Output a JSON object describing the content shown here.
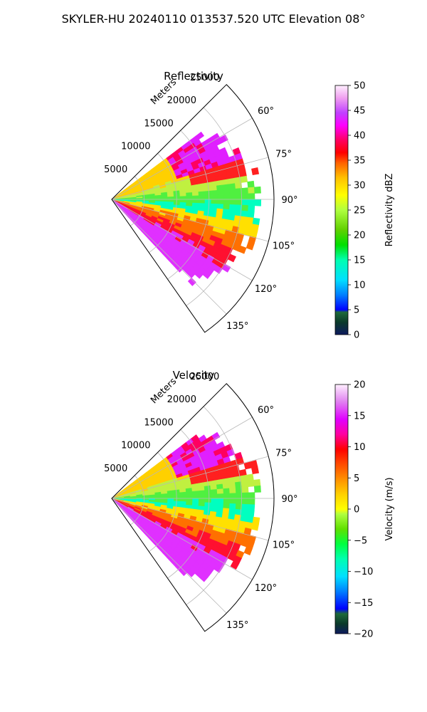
{
  "figure": {
    "suptitle": "SKYLER-HU  20240110  013537.520 UTC Elevation 08°"
  },
  "chart_data": [
    {
      "type": "heatmap",
      "projection": "polar-sector",
      "title": "Reflectivity",
      "r_label": "Meters",
      "r_ticks": [
        5000,
        10000,
        15000,
        20000,
        25000
      ],
      "r_tick_labels": [
        "5000",
        "10000",
        "15000",
        "20000",
        "25000"
      ],
      "r_max": 25000,
      "theta_range": [
        45,
        145
      ],
      "theta_ticks": [
        60,
        75,
        90,
        105,
        120,
        135
      ],
      "theta_tick_labels": [
        "60°",
        "75°",
        "90°",
        "105°",
        "120°",
        "135°"
      ],
      "grid": true,
      "colorbar": {
        "label": "Reflectivity dBZ",
        "range": [
          0,
          50
        ],
        "ticks": [
          0,
          5,
          10,
          15,
          20,
          25,
          30,
          35,
          40,
          45,
          50
        ],
        "tick_labels": [
          "0",
          "5",
          "10",
          "15",
          "20",
          "25",
          "30",
          "35",
          "40",
          "45",
          "50"
        ]
      }
    },
    {
      "type": "heatmap",
      "projection": "polar-sector",
      "title": "Velocity",
      "r_label": "Meters",
      "r_ticks": [
        5000,
        10000,
        15000,
        20000,
        25000
      ],
      "r_tick_labels": [
        "5000",
        "10000",
        "15000",
        "20000",
        "25000"
      ],
      "r_max": 25000,
      "theta_range": [
        45,
        145
      ],
      "theta_ticks": [
        60,
        75,
        90,
        105,
        120,
        135
      ],
      "theta_tick_labels": [
        "60°",
        "75°",
        "90°",
        "105°",
        "120°",
        "135°"
      ],
      "grid": true,
      "colorbar": {
        "label": "Velocity (m/s)",
        "range": [
          -20,
          20
        ],
        "ticks": [
          -20,
          -15,
          -10,
          -5,
          0,
          5,
          10,
          15,
          20
        ],
        "tick_labels": [
          "−20",
          "−15",
          "−10",
          "−5",
          "0",
          "5",
          "10",
          "15",
          "20"
        ]
      }
    }
  ]
}
